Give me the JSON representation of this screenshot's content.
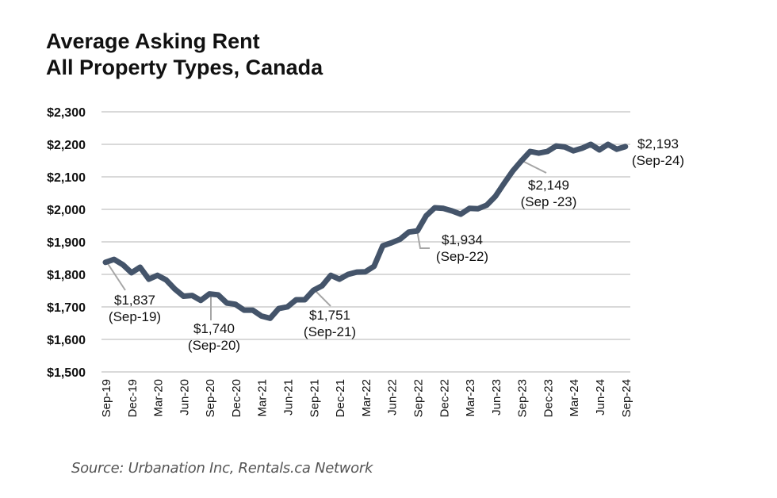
{
  "chart_data": {
    "type": "line",
    "title": "Average Asking Rent",
    "subtitle": "All Property Types, Canada",
    "xlabel": "",
    "ylabel": "",
    "ylim": [
      1500,
      2300
    ],
    "grid": true,
    "legend": "none",
    "y_ticks": [
      "$1,500",
      "$1,600",
      "$1,700",
      "$1,800",
      "$1,900",
      "$2,000",
      "$2,100",
      "$2,200",
      "$2,300"
    ],
    "y_tick_values": [
      1500,
      1600,
      1700,
      1800,
      1900,
      2000,
      2100,
      2200,
      2300
    ],
    "x_ticks": [
      "Sep-19",
      "Dec-19",
      "Mar-20",
      "Jun-20",
      "Sep-20",
      "Dec-20",
      "Mar-21",
      "Jun-21",
      "Sep-21",
      "Dec-21",
      "Mar-22",
      "Jun-22",
      "Sep-22",
      "Dec-22",
      "Mar-23",
      "Jun-23",
      "Sep-23",
      "Dec-23",
      "Mar-24",
      "Jun-24",
      "Sep-24"
    ],
    "series": [
      {
        "name": "Average Asking Rent",
        "color": "#44546a",
        "x_start": "Sep-19",
        "x_step": "month",
        "values": [
          1837,
          1846,
          1830,
          1805,
          1822,
          1785,
          1797,
          1783,
          1755,
          1733,
          1735,
          1720,
          1740,
          1737,
          1712,
          1708,
          1690,
          1690,
          1672,
          1665,
          1695,
          1700,
          1722,
          1722,
          1751,
          1765,
          1797,
          1785,
          1800,
          1807,
          1808,
          1825,
          1888,
          1897,
          1908,
          1930,
          1934,
          1980,
          2005,
          2003,
          1995,
          1985,
          2003,
          2002,
          2013,
          2040,
          2080,
          2118,
          2149,
          2178,
          2173,
          2178,
          2195,
          2192,
          2180,
          2188,
          2200,
          2183,
          2200,
          2185,
          2193
        ]
      }
    ],
    "annotations": [
      {
        "value_label": "$1,837",
        "date_label": "(Sep-19)",
        "x": "Sep-19",
        "y": 1837
      },
      {
        "value_label": "$1,740",
        "date_label": "(Sep-20)",
        "x": "Sep-20",
        "y": 1740
      },
      {
        "value_label": "$1,751",
        "date_label": "(Sep-21)",
        "x": "Sep-21",
        "y": 1751
      },
      {
        "value_label": "$1,934",
        "date_label": "(Sep-22)",
        "x": "Sep-22",
        "y": 1934
      },
      {
        "value_label": "$2,149",
        "date_label": "(Sep -23)",
        "x": "Sep-23",
        "y": 2149
      },
      {
        "value_label": "$2,193",
        "date_label": "(Sep-24)",
        "x": "Sep-24",
        "y": 2193
      }
    ]
  },
  "source": "Source: Urbanation Inc, Rentals.ca Network"
}
